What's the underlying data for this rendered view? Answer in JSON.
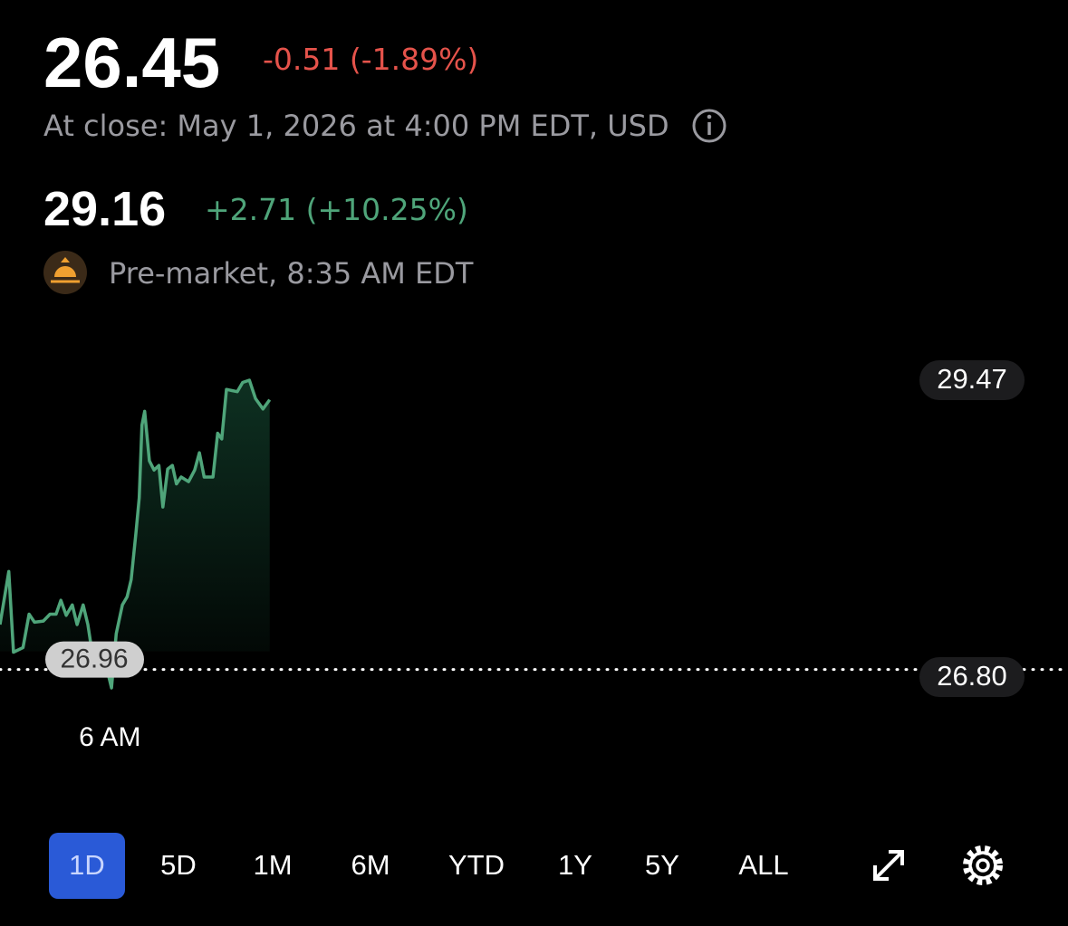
{
  "quote": {
    "price": "26.45",
    "change": "-0.51 (-1.89%)",
    "close_info": "At close: May 1, 2026 at 4:00 PM EDT, USD"
  },
  "premarket": {
    "price": "29.16",
    "change": "+2.71 (+10.25%)",
    "session": "Pre-market, 8:35 AM EDT"
  },
  "chart_data": {
    "type": "line",
    "color": "#4fa57a",
    "x": [
      4.2,
      4.33,
      4.4,
      4.54,
      4.63,
      4.71,
      4.84,
      4.94,
      5.03,
      5.1,
      5.18,
      5.27,
      5.34,
      5.43,
      5.5,
      5.58,
      5.65,
      5.71,
      5.78,
      5.85,
      5.92,
      6.01,
      6.08,
      6.14,
      6.21,
      6.26,
      6.3,
      6.34,
      6.41,
      6.48,
      6.55,
      6.61,
      6.68,
      6.75,
      6.81,
      6.88,
      6.99,
      7.08,
      7.15,
      7.22,
      7.35,
      7.42,
      7.48,
      7.55,
      7.71,
      7.79,
      7.89,
      7.98,
      8.09,
      8.19
    ],
    "values": [
      27.35,
      27.81,
      27.11,
      27.15,
      27.44,
      27.37,
      27.38,
      27.44,
      27.44,
      27.56,
      27.43,
      27.52,
      27.35,
      27.52,
      27.35,
      27.04,
      27.02,
      27.05,
      26.97,
      26.8,
      27.27,
      27.52,
      27.59,
      27.74,
      28.14,
      28.45,
      29.08,
      29.2,
      28.77,
      28.69,
      28.73,
      28.37,
      28.7,
      28.73,
      28.57,
      28.63,
      28.59,
      28.69,
      28.84,
      28.63,
      28.63,
      29.01,
      28.96,
      29.39,
      29.37,
      29.45,
      29.47,
      29.31,
      29.22,
      29.3
    ],
    "xlim": [
      4.2,
      20
    ],
    "xticks": [
      {
        "value": 6,
        "label": "6 AM"
      }
    ],
    "ylim": [
      26.8,
      29.47
    ],
    "yticks": [
      {
        "value": 26.8,
        "label": "26.80"
      },
      29.47
    ],
    "reference": {
      "value": 26.96
    }
  },
  "ranges": [
    "1D",
    "5D",
    "1M",
    "6M",
    "YTD",
    "1Y",
    "5Y",
    "ALL"
  ]
}
